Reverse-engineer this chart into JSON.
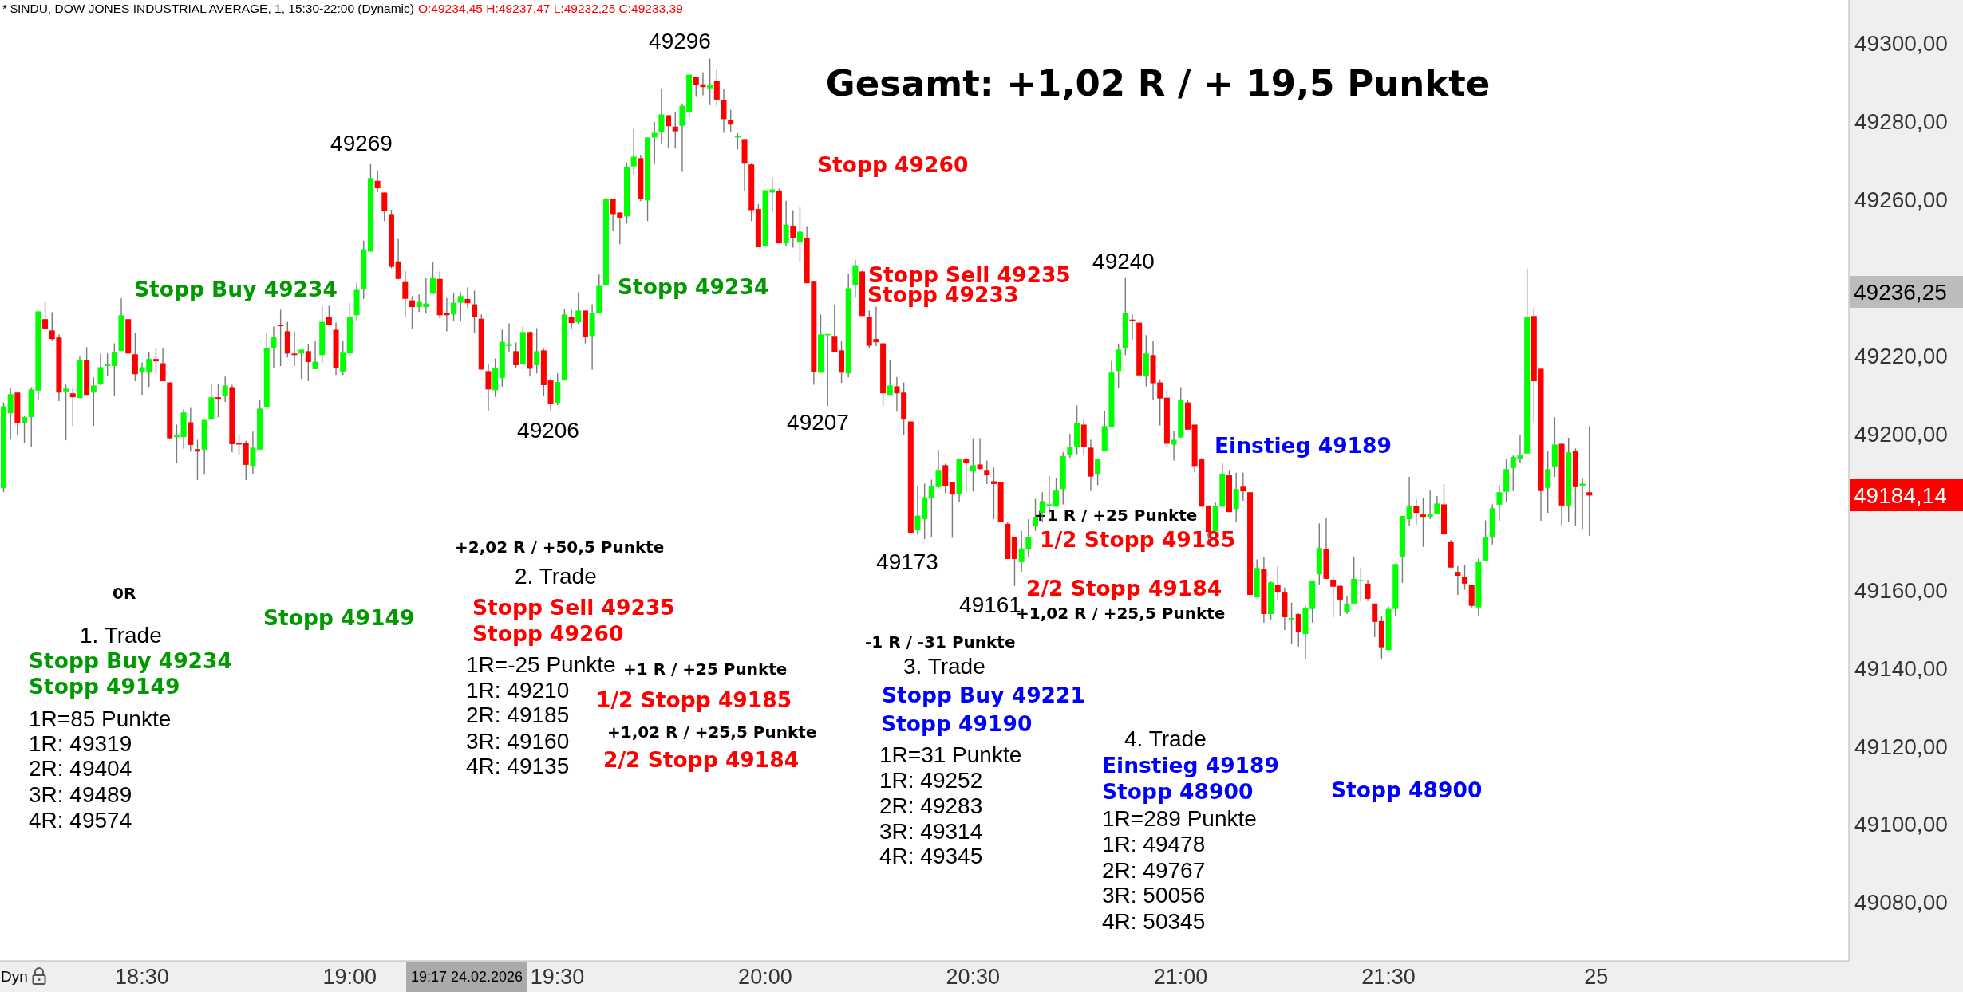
{
  "chart_data": {
    "type": "candlestick",
    "title": "* $INDU, DOW JONES INDUSTRIAL AVERAGE, 1, 15:30-22:00 (Dynamic)",
    "subtitle": "O:49234,45 H:49237,47 L:49232,25 C:49233,39",
    "categories": [
      null,
      null,
      null,
      null,
      null,
      null,
      null,
      null,
      null,
      null,
      null,
      null,
      null,
      null,
      null,
      null,
      null,
      null,
      null,
      null,
      "18:30",
      null,
      null,
      null,
      null,
      null,
      null,
      null,
      null,
      null,
      null,
      null,
      null,
      null,
      null,
      null,
      null,
      null,
      null,
      null,
      null,
      null,
      null,
      null,
      null,
      null,
      null,
      null,
      null,
      null,
      "19:00",
      null,
      null,
      null,
      null,
      null,
      null,
      null,
      null,
      null,
      null,
      null,
      null,
      null,
      null,
      null,
      null,
      null,
      null,
      null,
      null,
      null,
      null,
      null,
      null,
      null,
      null,
      null,
      null,
      null,
      "19:30",
      null,
      null,
      null,
      null,
      null,
      null,
      null,
      null,
      null,
      null,
      null,
      null,
      null,
      null,
      null,
      null,
      null,
      null,
      null,
      null,
      null,
      null,
      null,
      null,
      null,
      null,
      null,
      null,
      null,
      "20:00",
      null,
      null,
      null,
      null,
      null,
      null,
      null,
      null,
      null,
      null,
      null,
      null,
      null,
      null,
      null,
      null,
      null,
      null,
      null,
      null,
      null,
      null,
      null,
      null,
      null,
      null,
      null,
      null,
      null,
      "20:30",
      null,
      null,
      null,
      null,
      null,
      null,
      null,
      null,
      null,
      null,
      null,
      null,
      null,
      null,
      null,
      null,
      null,
      null,
      null,
      null,
      null,
      null,
      null,
      null,
      null,
      null,
      null,
      null,
      null,
      "21:00",
      null,
      null,
      null,
      null,
      null,
      null,
      null,
      null,
      null,
      null,
      null,
      null,
      null,
      null,
      null,
      null,
      null,
      null,
      null,
      null,
      null,
      null,
      null,
      null,
      null,
      null,
      null,
      null,
      null,
      "21:30",
      null,
      null,
      null,
      null,
      null,
      null,
      null,
      null,
      null,
      null,
      null,
      null,
      null,
      null,
      null,
      null,
      null,
      null,
      null,
      null,
      null,
      null,
      null,
      null,
      null,
      null,
      null,
      null,
      null,
      "25",
      null,
      null,
      null,
      null,
      null,
      null,
      null,
      null,
      null,
      null,
      null,
      null,
      null,
      null,
      null,
      null,
      null,
      null,
      null,
      null,
      null,
      null,
      null,
      null,
      null,
      null,
      null,
      null,
      null,
      null,
      null,
      null,
      null,
      null,
      null,
      null
    ],
    "ohlc": [
      [
        49186,
        49208,
        49185,
        49207
      ],
      [
        49205.2,
        49211.8,
        49198.5,
        49210.1
      ],
      [
        49210.5,
        49210.5,
        49199.7,
        49202.6
      ],
      [
        49202.6,
        49204.4,
        49197.7,
        49204.2
      ],
      [
        49204.2,
        49211.9,
        49196.7,
        49211.3
      ],
      [
        49211.0,
        49231.3,
        49208.7,
        49231.3
      ],
      [
        49229.3,
        49233.7,
        49226.7,
        49226.9
      ],
      [
        49226.4,
        49231.1,
        49223.8,
        49224.2
      ],
      [
        49224.6,
        49225.4,
        49208.3,
        49210.5
      ],
      [
        49210.8,
        49212.5,
        49198.3,
        49211.5
      ],
      [
        49210.3,
        49211.7,
        49202.0,
        49209.3
      ],
      [
        49209.1,
        49219.7,
        49209.1,
        49218.8
      ],
      [
        49218.8,
        49222.1,
        49209.9,
        49209.9
      ],
      [
        49210.5,
        49214.4,
        49202.0,
        49212.3
      ],
      [
        49212.8,
        49220.5,
        49212.4,
        49217.0
      ],
      [
        49217.3,
        49220.5,
        49214.8,
        49217.7
      ],
      [
        49217.3,
        49223.1,
        49209.7,
        49220.9
      ],
      [
        49221.2,
        49234.6,
        49221.2,
        49230.3
      ],
      [
        49229.3,
        49229.3,
        49220.5,
        49220.5
      ],
      [
        49220.3,
        49225.8,
        49213.4,
        49215.2
      ],
      [
        49215.6,
        49218.2,
        49209.9,
        49217.0
      ],
      [
        49215.6,
        49220.9,
        49212.0,
        49219.1
      ],
      [
        49219.1,
        49221.8,
        49215.4,
        49218.5
      ],
      [
        49218.0,
        49221.8,
        49213.4,
        49213.4
      ],
      [
        49213.1,
        49213.1,
        49198.6,
        49198.8
      ],
      [
        49199.1,
        49202.3,
        49192.4,
        49199.5
      ],
      [
        49199.1,
        49206.2,
        49196.1,
        49205.4
      ],
      [
        49202.9,
        49206.6,
        49195.4,
        49197.1
      ],
      [
        49196.0,
        49198.4,
        49188.1,
        49195.4
      ],
      [
        49195.9,
        49203.5,
        49189.5,
        49203.5
      ],
      [
        49203.8,
        49212.7,
        49203.8,
        49209.3
      ],
      [
        49209.3,
        49212.7,
        49204.2,
        49208.9
      ],
      [
        49209.5,
        49214.6,
        49208.1,
        49212.3
      ],
      [
        49211.9,
        49212.5,
        49195.2,
        49197.3
      ],
      [
        49197.6,
        49199.7,
        49194.4,
        49197.2
      ],
      [
        49197.6,
        49198.2,
        49188.1,
        49192.0
      ],
      [
        49191.6,
        49200.5,
        49189.7,
        49196.4
      ],
      [
        49195.9,
        49208.6,
        49195.9,
        49206.4
      ],
      [
        49206.9,
        49225.8,
        49206.9,
        49221.9
      ],
      [
        49222.0,
        49227.4,
        49216.7,
        49224.8
      ],
      [
        49227.8,
        49231.7,
        49217.3,
        49227.5
      ],
      [
        49226.2,
        49228.6,
        49219.5,
        49220.5
      ],
      [
        49220.5,
        49226.2,
        49217.3,
        49220.1
      ],
      [
        49220.5,
        49221.5,
        49214.0,
        49221.5
      ],
      [
        49221.1,
        49222.9,
        49213.4,
        49218.3
      ],
      [
        49216.5,
        49223.7,
        49216.5,
        49218.4
      ],
      [
        49220.1,
        49232.7,
        49218.1,
        49228.6
      ],
      [
        49229.9,
        49232.7,
        49227.7,
        49227.7
      ],
      [
        49226.6,
        49228.4,
        49215.0,
        49216.9
      ],
      [
        49215.9,
        49223.7,
        49215.0,
        49220.7
      ],
      [
        49220.5,
        49233.5,
        49219.9,
        49229.8
      ],
      [
        49230.3,
        49238.6,
        49228.9,
        49236.8
      ],
      [
        49237.1,
        49249.4,
        49234.5,
        49247.2
      ],
      [
        49246.6,
        49269,
        49246.6,
        49265.4
      ],
      [
        49264.7,
        49267.4,
        49261.8,
        49262.8
      ],
      [
        49261.7,
        49261.8,
        49254.4,
        49256.9
      ],
      [
        49256.2,
        49257.3,
        49242.3,
        49242.7
      ],
      [
        49244.1,
        49249.8,
        49239.5,
        49239.6
      ],
      [
        49238.8,
        49241.7,
        49229.7,
        49234.5
      ],
      [
        49234.1,
        49235.2,
        49226.9,
        49232.4
      ],
      [
        49232.4,
        49235.6,
        49231.2,
        49233.7
      ],
      [
        49232.4,
        49239.8,
        49230.7,
        49233.3
      ],
      [
        49235.8,
        49243.9,
        49235.8,
        49239.8
      ],
      [
        49239.6,
        49241.5,
        49229.5,
        49230.3
      ],
      [
        49230.9,
        49234.7,
        49226.2,
        49230.3
      ],
      [
        49230.5,
        49236.0,
        49228.7,
        49233.5
      ],
      [
        49233.5,
        49236.2,
        49228.7,
        49235.2
      ],
      [
        49234.45,
        49237.47,
        49232.25,
        49233.39
      ],
      [
        49233.1,
        49236.6,
        49225.8,
        49229.9
      ],
      [
        49229.4,
        49230.5,
        49216.4,
        49216.4
      ],
      [
        49216.0,
        49217.8,
        49205.8,
        49211.3
      ],
      [
        49211.1,
        49219.2,
        49209.4,
        49216.8
      ],
      [
        49214.2,
        49226.6,
        49212.0,
        49223.5
      ],
      [
        49222.4,
        49228.2,
        49220.9,
        49222.7
      ],
      [
        49221.1,
        49223.3,
        49216.9,
        49217.5
      ],
      [
        49217.7,
        49227.4,
        49217.7,
        49226.0
      ],
      [
        49226.0,
        49226.2,
        49214.6,
        49216.6
      ],
      [
        49217.5,
        49227.0,
        49215.4,
        49221.1
      ],
      [
        49221.3,
        49221.7,
        49209.5,
        49212.4
      ],
      [
        49213.6,
        49214.2,
        49206,
        49207.5
      ],
      [
        49207.7,
        49215.4,
        49207.3,
        49213.2
      ],
      [
        49213.6,
        49231.9,
        49213.6,
        49230.5
      ],
      [
        49229.8,
        49231.7,
        49226.8,
        49228.3
      ],
      [
        49228.5,
        49236.2,
        49228.1,
        49231.5
      ],
      [
        49231.5,
        49231.5,
        49223.1,
        49224.8
      ],
      [
        49225.0,
        49233.1,
        49216.4,
        49230.9
      ],
      [
        49230.9,
        49240.7,
        49230.9,
        49237.8
      ],
      [
        49238.1,
        49260.5,
        49238.1,
        49260.1
      ],
      [
        49260.1,
        49260.1,
        49251.8,
        49256.2
      ],
      [
        49256.6,
        49256.6,
        49248.5,
        49255.2
      ],
      [
        49255.6,
        49269.4,
        49253.8,
        49268.2
      ],
      [
        49268.4,
        49278.0,
        49266.4,
        49270.9
      ],
      [
        49270.5,
        49271.3,
        49259.5,
        49260.1
      ],
      [
        49259.7,
        49275.8,
        49254.4,
        49275.8
      ],
      [
        49275.8,
        49279.8,
        49269.0,
        49277.0
      ],
      [
        49277.2,
        49288.4,
        49274.0,
        49281.7
      ],
      [
        49281.5,
        49281.5,
        49273.0,
        49278.7
      ],
      [
        49278.6,
        49282.3,
        49273.0,
        49277.4
      ],
      [
        49278.8,
        49284.5,
        49267.0,
        49283.9
      ],
      [
        49282.3,
        49291.9,
        49280.9,
        49291.9
      ],
      [
        49291.3,
        49291.3,
        49286.2,
        49289.2
      ],
      [
        49289.4,
        49292.5,
        49286.6,
        49288.7
      ],
      [
        49288.4,
        49296,
        49284.1,
        49289.2
      ],
      [
        49290.2,
        49293.3,
        49283.8,
        49285.5
      ],
      [
        49285.3,
        49288.2,
        49277.0,
        49280.5
      ],
      [
        49280.3,
        49282.9,
        49277.3,
        49279.1
      ],
      [
        49275.8,
        49276.9,
        49272.8,
        49276.2
      ],
      [
        49275.4,
        49275.4,
        49262.2,
        49269.1
      ],
      [
        49268.9,
        49269.2,
        49254.4,
        49257.2
      ],
      [
        49257.5,
        49258.7,
        49247.7,
        49247.7
      ],
      [
        49248.1,
        49262.3,
        49248.1,
        49262.3
      ],
      [
        49261.7,
        49265.6,
        49256.6,
        49262.5
      ],
      [
        49262.1,
        49262.7,
        49248.7,
        49248.7
      ],
      [
        49248.7,
        49259.6,
        49247.9,
        49253.5
      ],
      [
        49253.1,
        49257.2,
        49247.6,
        49250.1
      ],
      [
        49248.9,
        49258.2,
        49243.8,
        49251.7
      ],
      [
        49250.0,
        49252.9,
        49238.5,
        49238.5
      ],
      [
        49238.9,
        49238.9,
        49212.5,
        49215.8
      ],
      [
        49215.6,
        49230.5,
        49215.6,
        49225.4
      ],
      [
        49225.2,
        49225.5,
        49207,
        49225.5
      ],
      [
        49225.0,
        49232.8,
        49220.9,
        49220.9
      ],
      [
        49221.3,
        49223.8,
        49213.0,
        49215.6
      ],
      [
        49215.4,
        49240.9,
        49214.4,
        49237.2
      ],
      [
        49238.1,
        49244.4,
        49234.8,
        49243.1
      ],
      [
        49241.5,
        49241.7,
        49230.1,
        49230.1
      ],
      [
        49229.8,
        49231.5,
        49222.0,
        49222.5
      ],
      [
        49224.2,
        49232.5,
        49222.4,
        49223.4
      ],
      [
        49223.1,
        49223.1,
        49207.1,
        49210.3
      ],
      [
        49209.9,
        49218.8,
        49209.9,
        49212.3
      ],
      [
        49212.1,
        49214.5,
        49205.6,
        49210.3
      ],
      [
        49210.5,
        49213.1,
        49199.7,
        49203.6
      ],
      [
        49203.1,
        49203.1,
        49174.6,
        49174.6
      ],
      [
        49175.2,
        49186.6,
        49174.1,
        49179.0
      ],
      [
        49178.1,
        49187.2,
        49173,
        49183.7
      ],
      [
        49183.4,
        49188.2,
        49173.4,
        49186.6
      ],
      [
        49186.3,
        49195.8,
        49186.1,
        49190.5
      ],
      [
        49191.9,
        49192.3,
        49184.8,
        49186.6
      ],
      [
        49187.6,
        49187.6,
        49173.3,
        49184.4
      ],
      [
        49184.5,
        49193.5,
        49182.4,
        49193.5
      ],
      [
        49193.5,
        49193.9,
        49185.2,
        49192.5
      ],
      [
        49190.3,
        49198.8,
        49185.2,
        49191.9
      ],
      [
        49192.1,
        49198.8,
        49190.9,
        49190.9
      ],
      [
        49190.5,
        49193.1,
        49187.1,
        49189.3
      ],
      [
        49187.8,
        49191.3,
        49178.1,
        49187.1
      ],
      [
        49187.6,
        49187.6,
        49177.3,
        49177.3
      ],
      [
        49176.9,
        49177.3,
        49167.9,
        49167.9
      ],
      [
        49173.4,
        49173.4,
        49161,
        49167.9
      ],
      [
        49167.1,
        49175.1,
        49164.6,
        49170.6
      ],
      [
        49170.4,
        49178.1,
        49168.3,
        49173.5
      ],
      [
        49176.2,
        49183.3,
        49175.1,
        49178.7
      ],
      [
        49179.7,
        49185.0,
        49177.3,
        49182.7
      ],
      [
        49181.5,
        49189.1,
        49179.5,
        49181.9
      ],
      [
        49181.3,
        49188.6,
        49181.3,
        49185.4
      ],
      [
        49185.8,
        49195.2,
        49181.9,
        49194.2
      ],
      [
        49194.4,
        49199.9,
        49193.8,
        49196.6
      ],
      [
        49196.6,
        49207.2,
        49194.7,
        49202.7
      ],
      [
        49202.3,
        49203.7,
        49194.4,
        49196.6
      ],
      [
        49196.4,
        49198.4,
        49185.3,
        49189.0
      ],
      [
        49189.5,
        49193.6,
        49186.8,
        49193.6
      ],
      [
        49195.6,
        49205.8,
        49195.6,
        49201.9
      ],
      [
        49201.7,
        49218.6,
        49201.7,
        49215.6
      ],
      [
        49216.0,
        49222.9,
        49211.7,
        49221.5
      ],
      [
        49221.9,
        49240,
        49220.1,
        49230.9
      ],
      [
        49229.2,
        49230.5,
        49224.1,
        49228.9
      ],
      [
        49228.4,
        49228.4,
        49214.9,
        49214.9
      ],
      [
        49214.8,
        49225.2,
        49212.1,
        49220.5
      ],
      [
        49220.1,
        49223.7,
        49208.6,
        49212.9
      ],
      [
        49213.1,
        49213.9,
        49202.1,
        49209.0
      ],
      [
        49209.2,
        49211.1,
        49196.6,
        49197.4
      ],
      [
        49197.2,
        49200.6,
        49193.1,
        49198.4
      ],
      [
        49199.0,
        49211.9,
        49199.0,
        49208.6
      ],
      [
        49208.0,
        49208.6,
        49201.0,
        49201.0
      ],
      [
        49202.3,
        49202.3,
        49190.1,
        49191.5
      ],
      [
        49193.4,
        49193.7,
        49181.3,
        49181.3
      ],
      [
        49181.6,
        49181.6,
        49172.8,
        49174.8
      ],
      [
        49175.0,
        49182.6,
        49175.0,
        49181.6
      ],
      [
        49181.3,
        49192.5,
        49181.3,
        49189.6
      ],
      [
        49189.3,
        49190.5,
        49179.9,
        49179.9
      ],
      [
        49180.7,
        49190.0,
        49177.5,
        49185.8
      ],
      [
        49186.4,
        49190.0,
        49182.8,
        49185.2
      ],
      [
        49185.0,
        49185.0,
        49158.7,
        49158.7
      ],
      [
        49158.1,
        49167.8,
        49158.1,
        49165.6
      ],
      [
        49165.4,
        49168.5,
        49151.6,
        49153.8
      ],
      [
        49153.8,
        49162.2,
        49152.4,
        49161.9
      ],
      [
        49161.3,
        49166.0,
        49157.3,
        49159.3
      ],
      [
        49159.3,
        49160.6,
        49149.7,
        49153.0
      ],
      [
        49152.4,
        49156.7,
        49146.1,
        49152.8
      ],
      [
        49153.8,
        49154.0,
        49145.5,
        49149.1
      ],
      [
        49148.7,
        49155.9,
        49142.2,
        49155.3
      ],
      [
        49155.1,
        49162.4,
        49151.6,
        49162.4
      ],
      [
        49164.0,
        49177.0,
        49161.4,
        49170.7
      ],
      [
        49170.5,
        49178.3,
        49162.8,
        49162.8
      ],
      [
        49162.6,
        49163.4,
        49153.0,
        49160.8
      ],
      [
        49161.0,
        49161.2,
        49153.2,
        49157.5
      ],
      [
        49154.4,
        49158.5,
        49153.8,
        49156.5
      ],
      [
        49156.5,
        49168.3,
        49156.5,
        49162.8
      ],
      [
        49162.2,
        49165.7,
        49157.1,
        49162.5
      ],
      [
        49161.6,
        49162.6,
        49157.1,
        49157.7
      ],
      [
        49156.5,
        49156.5,
        49147.9,
        49151.8
      ],
      [
        49152.0,
        49153.4,
        49142.4,
        49145.3
      ],
      [
        49144.6,
        49155.7,
        49144.2,
        49155.1
      ],
      [
        49155.1,
        49166.6,
        49153.4,
        49166.6
      ],
      [
        49168.3,
        49178.9,
        49161.8,
        49178.9
      ],
      [
        49178.1,
        49188.9,
        49176.3,
        49181.5
      ],
      [
        49181.5,
        49183.2,
        49176.7,
        49179.7
      ],
      [
        49179.3,
        49183.4,
        49171.0,
        49178.7
      ],
      [
        49178.7,
        49185.4,
        49178.1,
        49179.5
      ],
      [
        49179.5,
        49184.0,
        49179.5,
        49182.1
      ],
      [
        49181.9,
        49187.1,
        49174.2,
        49174.2
      ],
      [
        49172.2,
        49172.8,
        49165.7,
        49165.7
      ],
      [
        49164.6,
        49166.1,
        49158.7,
        49163.6
      ],
      [
        49163.4,
        49166.3,
        49160.0,
        49161.6
      ],
      [
        49161.2,
        49161.2,
        49155.5,
        49155.9
      ],
      [
        49155.5,
        49168.1,
        49153.2,
        49167.1
      ],
      [
        49167.5,
        49177.8,
        49167.5,
        49173.4
      ],
      [
        49173.6,
        49181.9,
        49171.6,
        49180.9
      ],
      [
        49181.8,
        49186.7,
        49177.7,
        49185.0
      ],
      [
        49185.1,
        49193.4,
        49182.6,
        49190.9
      ],
      [
        49191.2,
        49194.4,
        49185.3,
        49194.0
      ],
      [
        49193.5,
        49199.7,
        49192.6,
        49194.4
      ],
      [
        49194.9,
        49242.3,
        49194.9,
        49229.9
      ],
      [
        49230.1,
        49232.1,
        49202.8,
        49213.4
      ],
      [
        49216.6,
        49216.6,
        49177.7,
        49185.3
      ],
      [
        49186.1,
        49195.6,
        49179.7,
        49190.9
      ],
      [
        49191.4,
        49204.2,
        49188.9,
        49197.2
      ],
      [
        49197.4,
        49197.4,
        49176.5,
        49181.6
      ],
      [
        49181.6,
        49198.9,
        49177.3,
        49195.2
      ],
      [
        49195.6,
        49196.2,
        49176.5,
        49186.3
      ],
      [
        49186.5,
        49188.6,
        49175.4,
        49187.2
      ],
      [
        49185,
        49201.9,
        49173.8,
        49184.14
      ],
      null,
      null,
      null,
      null,
      null,
      null,
      null,
      null,
      null,
      null,
      null,
      null,
      null,
      null,
      null,
      null,
      null,
      null,
      null,
      null,
      null,
      null,
      null,
      null,
      null,
      null,
      null,
      null,
      null,
      null,
      null,
      null,
      null,
      null,
      null,
      null,
      null
    ],
    "colors": [
      "#00ff00",
      "#00ff00",
      "#ff0000",
      "#00ff00",
      "#00ff00",
      "#00ff00",
      "#ff0000",
      "#ff0000",
      "#ff0000",
      "#00ff00",
      "#ff0000",
      "#00ff00",
      "#ff0000",
      "#00ff00",
      "#00ff00",
      "#00ff00",
      "#00ff00",
      "#00ff00",
      "#ff0000",
      "#ff0000",
      "#00ff00",
      "#00ff00",
      "#ff0000",
      "#ff0000",
      "#ff0000",
      "#00ff00",
      "#00ff00",
      "#ff0000",
      "#ff0000",
      "#00ff00",
      "#00ff00",
      "#ff0000",
      "#00ff00",
      "#ff0000",
      "#ff0000",
      "#ff0000",
      "#00ff00",
      "#00ff00",
      "#00ff00",
      "#00ff00",
      "#ff0000",
      "#ff0000",
      "#ff0000",
      "#00ff00",
      "#ff0000",
      "#00ff00",
      "#00ff00",
      "#ff0000",
      "#ff0000",
      "#00ff00",
      "#00ff00",
      "#00ff00",
      "#00ff00",
      "#00ff00",
      "#ff0000",
      "#ff0000",
      "#ff0000",
      "#ff0000",
      "#ff0000",
      "#ff0000",
      "#00ff00",
      "#00ff00",
      "#00ff00",
      "#ff0000",
      "#ff0000",
      "#00ff00",
      "#00ff00",
      "#ff0000",
      "#ff0000",
      "#ff0000",
      "#ff0000",
      "#00ff00",
      "#00ff00",
      "#00ff00",
      "#ff0000",
      "#00ff00",
      "#ff0000",
      "#00ff00",
      "#ff0000",
      "#ff0000",
      "#00ff00",
      "#00ff00",
      "#ff0000",
      "#00ff00",
      "#ff0000",
      "#00ff00",
      "#00ff00",
      "#00ff00",
      "#ff0000",
      "#ff0000",
      "#00ff00",
      "#00ff00",
      "#ff0000",
      "#00ff00",
      "#00ff00",
      "#00ff00",
      "#ff0000",
      "#ff0000",
      "#00ff00",
      "#00ff00",
      "#ff0000",
      "#ff0000",
      "#00ff00",
      "#ff0000",
      "#ff0000",
      "#ff0000",
      "#00ff00",
      "#ff0000",
      "#ff0000",
      "#ff0000",
      "#00ff00",
      "#00ff00",
      "#ff0000",
      "#00ff00",
      "#ff0000",
      "#00ff00",
      "#ff0000",
      "#ff0000",
      "#00ff00",
      "#00ff00",
      "#ff0000",
      "#ff0000",
      "#00ff00",
      "#00ff00",
      "#ff0000",
      "#ff0000",
      "#ff0000",
      "#ff0000",
      "#00ff00",
      "#ff0000",
      "#ff0000",
      "#ff0000",
      "#00ff00",
      "#00ff00",
      "#00ff00",
      "#00ff00",
      "#ff0000",
      "#ff0000",
      "#00ff00",
      "#ff0000",
      "#00ff00",
      "#ff0000",
      "#ff0000",
      "#ff0000",
      "#ff0000",
      "#ff0000",
      "#ff0000",
      "#00ff00",
      "#00ff00",
      "#00ff00",
      "#00ff00",
      "#00ff00",
      "#00ff00",
      "#00ff00",
      "#00ff00",
      "#00ff00",
      "#ff0000",
      "#ff0000",
      "#00ff00",
      "#00ff00",
      "#00ff00",
      "#00ff00",
      "#00ff00",
      "#ff0000",
      "#ff0000",
      "#00ff00",
      "#ff0000",
      "#ff0000",
      "#ff0000",
      "#00ff00",
      "#00ff00",
      "#ff0000",
      "#ff0000",
      "#ff0000",
      "#ff0000",
      "#00ff00",
      "#00ff00",
      "#ff0000",
      "#00ff00",
      "#ff0000",
      "#ff0000",
      "#00ff00",
      "#ff0000",
      "#00ff00",
      "#ff0000",
      "#ff0000",
      "#00ff00",
      "#ff0000",
      "#00ff00",
      "#00ff00",
      "#00ff00",
      "#ff0000",
      "#ff0000",
      "#ff0000",
      "#00ff00",
      "#00ff00",
      "#00ff00",
      "#ff0000",
      "#ff0000",
      "#ff0000",
      "#00ff00",
      "#00ff00",
      "#00ff00",
      "#00ff00",
      "#ff0000",
      "#ff0000",
      "#00ff00",
      "#00ff00",
      "#ff0000",
      "#ff0000",
      "#ff0000",
      "#ff0000",
      "#ff0000",
      "#00ff00",
      "#00ff00",
      "#00ff00",
      "#00ff00",
      "#00ff00",
      "#00ff00",
      "#00ff00",
      "#00ff00",
      "#ff0000",
      "#ff0000",
      "#00ff00",
      "#00ff00",
      "#ff0000",
      "#00ff00",
      "#ff0000",
      "#00ff00",
      "#ff0000",
      null,
      null,
      null,
      null,
      null,
      null,
      null,
      null,
      null,
      null,
      null,
      null,
      null,
      null,
      null,
      null,
      null,
      null,
      null,
      null,
      null,
      null,
      null,
      null,
      null,
      null,
      null,
      null,
      null,
      null,
      null,
      null,
      null,
      null,
      null,
      null,
      null
    ],
    "ylim": [
      49065,
      49311
    ],
    "yticks": [
      {
        "value": 49080,
        "label": "49080,00"
      },
      {
        "value": 49100,
        "label": "49100,00"
      },
      {
        "value": 49120,
        "label": "49120,00"
      },
      {
        "value": 49140,
        "label": "49140,00"
      },
      {
        "value": 49160,
        "label": "49160,00"
      },
      {
        "value": 49200,
        "label": "49200,00"
      },
      {
        "value": 49220,
        "label": "49220,00"
      },
      {
        "value": 49260,
        "label": "49260,00"
      },
      {
        "value": 49280,
        "label": "49280,00"
      },
      {
        "value": 49300,
        "label": "49300,00"
      }
    ],
    "annotations": [
      "Gesamt: +1,02 R / + 19,5 Punkte",
      "49296",
      "49269",
      "49206",
      "49207",
      "49240",
      "49173",
      "49161",
      "Stopp Buy 49234",
      "Stopp 49149",
      "Stopp 49234",
      "Stopp 49260",
      "Stopp Sell 49235",
      "Stopp 49233",
      "Einstieg 49189",
      "+1 R / +25 Punkte",
      "1/2 Stopp 49185",
      "2/2 Stopp 49184",
      "+1,02 R / +25,5 Punkte",
      "0R",
      "1. Trade",
      "Stopp Buy 49234",
      "Stopp 49149",
      "1R=85 Punkte",
      "1R: 49319",
      "2R: 49404",
      "3R: 49489",
      "4R: 49574",
      "+2,02 R / +50,5 Punkte",
      "2. Trade",
      "Stopp Sell 49235",
      "Stopp 49260",
      "1R=-25 Punkte",
      "1R: 49210",
      "2R: 49185",
      "3R: 49160",
      "4R: 49135",
      "+1 R / +25 Punkte",
      "1/2 Stopp 49185",
      "+1,02 R / +25,5 Punkte",
      "2/2 Stopp 49184",
      "-1 R / -31 Punkte",
      "3. Trade",
      "Stopp Buy 49221",
      "Stopp 49190",
      "1R=31 Punkte",
      "1R: 49252",
      "2R: 49283",
      "3R: 49314",
      "4R: 49345",
      "4. Trade",
      "Einstieg 49189",
      "Stopp 48900",
      "1R=289 Punkte",
      "1R: 49478",
      "2R: 49767",
      "3R: 50056",
      "4R: 50345",
      "Stopp 48900",
      "49236,25",
      "49184,14",
      "19:17 24.02.2026",
      "Dyn"
    ]
  }
}
